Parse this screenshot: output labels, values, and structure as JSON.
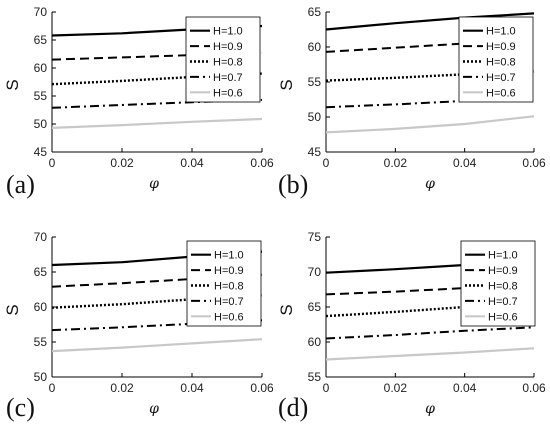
{
  "figure": {
    "colors": {
      "axis": "#000000",
      "dark": "#000000",
      "light": "#c8c8c8"
    },
    "line_styles": [
      "solid",
      "dash",
      "dot",
      "dashdot",
      "solid-light"
    ]
  },
  "chart_data": [
    {
      "type": "line",
      "panel_label": "(a)",
      "xlabel": "φ",
      "ylabel": "S",
      "xlim": [
        0,
        0.06
      ],
      "ylim": [
        45,
        70
      ],
      "x_ticks": [
        0,
        0.02,
        0.04,
        0.06
      ],
      "x_tick_labels": [
        "0",
        "0.02",
        "0.04",
        "0.06"
      ],
      "y_ticks": [
        45,
        50,
        55,
        60,
        65,
        70
      ],
      "y_tick_labels": [
        "45",
        "50",
        "55",
        "60",
        "65",
        "70"
      ],
      "legend": "top-right",
      "grid": false,
      "x": [
        0,
        0.02,
        0.04,
        0.06
      ],
      "series": [
        {
          "name": "H=1.0",
          "values": [
            65.8,
            66.2,
            66.9,
            67.5
          ]
        },
        {
          "name": "H=0.9",
          "values": [
            61.5,
            61.9,
            62.3,
            62.7
          ]
        },
        {
          "name": "H=0.8",
          "values": [
            57.1,
            57.7,
            58.4,
            59.0
          ]
        },
        {
          "name": "H=0.7",
          "values": [
            52.9,
            53.4,
            53.9,
            54.3
          ]
        },
        {
          "name": "H=0.6",
          "values": [
            49.3,
            49.8,
            50.4,
            50.9
          ]
        }
      ]
    },
    {
      "type": "line",
      "panel_label": "(b)",
      "xlabel": "φ",
      "ylabel": "S",
      "xlim": [
        0,
        0.06
      ],
      "ylim": [
        45,
        65
      ],
      "x_ticks": [
        0,
        0.02,
        0.04,
        0.06
      ],
      "x_tick_labels": [
        "0",
        "0.02",
        "0.04",
        "0.06"
      ],
      "y_ticks": [
        45,
        50,
        55,
        60,
        65
      ],
      "y_tick_labels": [
        "45",
        "50",
        "55",
        "60",
        "65"
      ],
      "legend": "top-right",
      "grid": false,
      "x": [
        0,
        0.02,
        0.04,
        0.06
      ],
      "series": [
        {
          "name": "H=1.0",
          "values": [
            62.5,
            63.4,
            64.2,
            64.8
          ]
        },
        {
          "name": "H=0.9",
          "values": [
            59.3,
            59.9,
            60.5,
            61.0
          ]
        },
        {
          "name": "H=0.8",
          "values": [
            55.2,
            55.6,
            56.1,
            56.5
          ]
        },
        {
          "name": "H=0.7",
          "values": [
            51.4,
            51.8,
            52.3,
            52.8
          ]
        },
        {
          "name": "H=0.6",
          "values": [
            47.8,
            48.3,
            49.0,
            50.1
          ]
        }
      ]
    },
    {
      "type": "line",
      "panel_label": "(c)",
      "xlabel": "φ",
      "ylabel": "S",
      "xlim": [
        0,
        0.06
      ],
      "ylim": [
        50,
        70
      ],
      "x_ticks": [
        0,
        0.02,
        0.04,
        0.06
      ],
      "x_tick_labels": [
        "0",
        "0.02",
        "0.04",
        "0.06"
      ],
      "y_ticks": [
        50,
        55,
        60,
        65,
        70
      ],
      "y_tick_labels": [
        "50",
        "55",
        "60",
        "65",
        "70"
      ],
      "legend": "top-right",
      "grid": false,
      "x": [
        0,
        0.02,
        0.04,
        0.06
      ],
      "series": [
        {
          "name": "H=1.0",
          "values": [
            66.0,
            66.4,
            67.2,
            67.9
          ]
        },
        {
          "name": "H=0.9",
          "values": [
            62.9,
            63.4,
            64.0,
            64.6
          ]
        },
        {
          "name": "H=0.8",
          "values": [
            59.9,
            60.4,
            61.1,
            61.7
          ]
        },
        {
          "name": "H=0.7",
          "values": [
            56.7,
            57.1,
            57.6,
            58.1
          ]
        },
        {
          "name": "H=0.6",
          "values": [
            53.7,
            54.2,
            54.8,
            55.4
          ]
        }
      ]
    },
    {
      "type": "line",
      "panel_label": "(d)",
      "xlabel": "φ",
      "ylabel": "S",
      "xlim": [
        0,
        0.06
      ],
      "ylim": [
        55,
        75
      ],
      "x_ticks": [
        0,
        0.02,
        0.04,
        0.06
      ],
      "x_tick_labels": [
        "0",
        "0.02",
        "0.04",
        "0.06"
      ],
      "y_ticks": [
        55,
        60,
        65,
        70,
        75
      ],
      "y_tick_labels": [
        "55",
        "60",
        "65",
        "70",
        "75"
      ],
      "legend": "top-right",
      "grid": false,
      "x": [
        0,
        0.02,
        0.04,
        0.06
      ],
      "series": [
        {
          "name": "H=1.0",
          "values": [
            69.9,
            70.4,
            71.0,
            71.6
          ]
        },
        {
          "name": "H=0.9",
          "values": [
            66.8,
            67.2,
            67.7,
            68.2
          ]
        },
        {
          "name": "H=0.8",
          "values": [
            63.7,
            64.3,
            65.0,
            65.6
          ]
        },
        {
          "name": "H=0.7",
          "values": [
            60.5,
            61.0,
            61.6,
            62.1
          ]
        },
        {
          "name": "H=0.6",
          "values": [
            57.5,
            58.0,
            58.5,
            59.1
          ]
        }
      ]
    }
  ]
}
